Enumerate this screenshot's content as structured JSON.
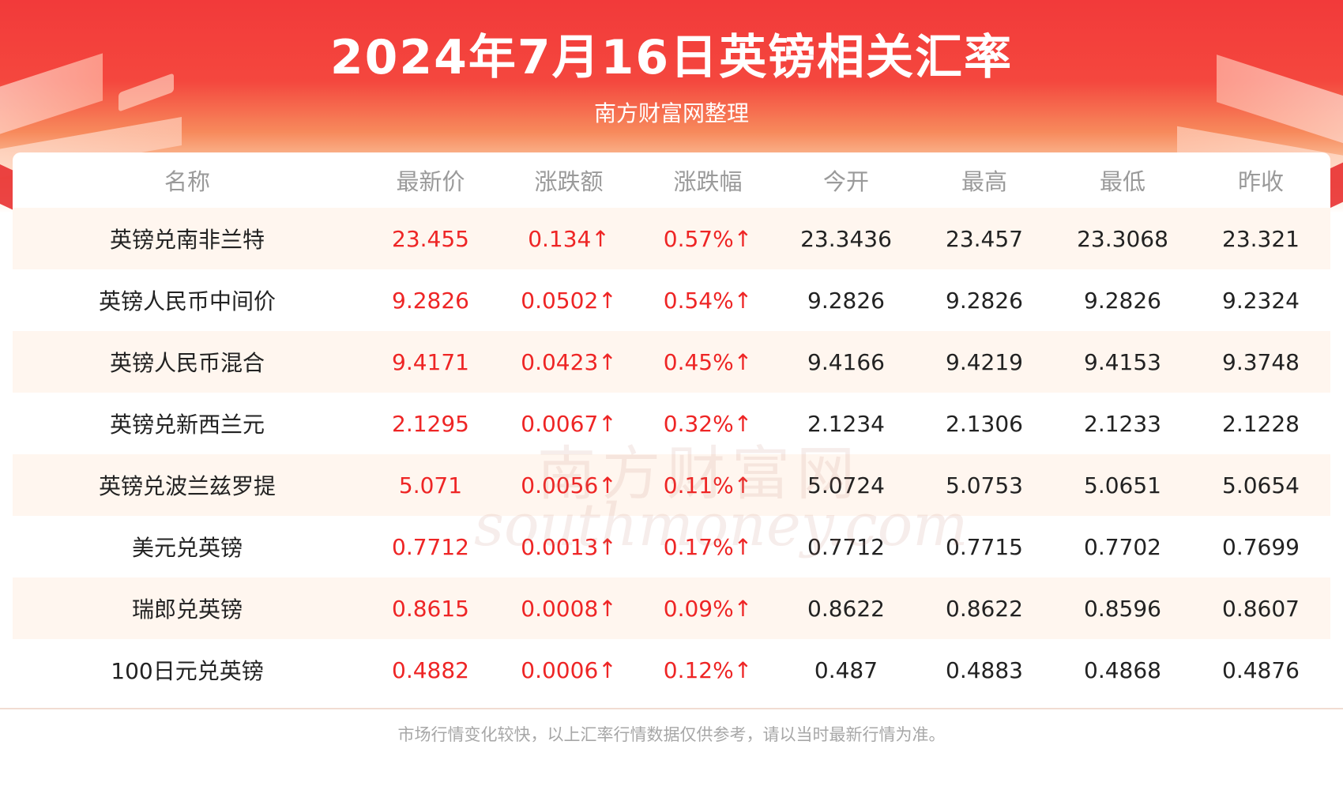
{
  "header": {
    "title": "2024年7月16日英镑相关汇率",
    "subtitle": "南方财富网整理"
  },
  "table": {
    "columns": [
      "名称",
      "最新价",
      "涨跌额",
      "涨跌幅",
      "今开",
      "最高",
      "最低",
      "昨收"
    ],
    "rows": [
      [
        "英镑兑南非兰特",
        "23.455",
        "0.134↑",
        "0.57%↑",
        "23.3436",
        "23.457",
        "23.3068",
        "23.321"
      ],
      [
        "英镑人民币中间价",
        "9.2826",
        "0.0502↑",
        "0.54%↑",
        "9.2826",
        "9.2826",
        "9.2826",
        "9.2324"
      ],
      [
        "英镑人民币混合",
        "9.4171",
        "0.0423↑",
        "0.45%↑",
        "9.4166",
        "9.4219",
        "9.4153",
        "9.3748"
      ],
      [
        "英镑兑新西兰元",
        "2.1295",
        "0.0067↑",
        "0.32%↑",
        "2.1234",
        "2.1306",
        "2.1233",
        "2.1228"
      ],
      [
        "英镑兑波兰兹罗提",
        "5.071",
        "0.0056↑",
        "0.11%↑",
        "5.0724",
        "5.0753",
        "5.0651",
        "5.0654"
      ],
      [
        "美元兑英镑",
        "0.7712",
        "0.0013↑",
        "0.17%↑",
        "0.7712",
        "0.7715",
        "0.7702",
        "0.7699"
      ],
      [
        "瑞郎兑英镑",
        "0.8615",
        "0.0008↑",
        "0.09%↑",
        "0.8622",
        "0.8622",
        "0.8596",
        "0.8607"
      ],
      [
        "100日元兑英镑",
        "0.4882",
        "0.0006↑",
        "0.12%↑",
        "0.487",
        "0.4883",
        "0.4868",
        "0.4876"
      ]
    ]
  },
  "watermark": {
    "cn": "南方财富网",
    "en": "southmoney.com"
  },
  "footer": {
    "note": "市场行情变化较快，以上汇率行情数据仅供参考，请以当时最新行情为准。"
  },
  "colors": {
    "brand_red": "#f23a3a",
    "up_red": "#ee2525",
    "row_tint": "#fff6ef",
    "header_text": "#9a9a9a"
  }
}
